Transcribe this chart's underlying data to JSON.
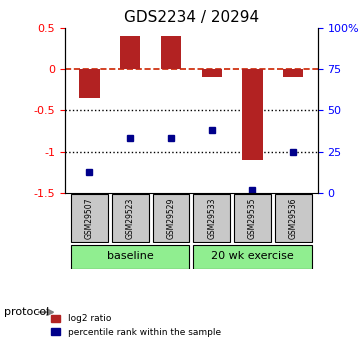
{
  "title": "GDS2234 / 20294",
  "samples": [
    "GSM29507",
    "GSM29523",
    "GSM29529",
    "GSM29533",
    "GSM29535",
    "GSM29536"
  ],
  "log2_ratio": [
    -0.35,
    0.4,
    0.4,
    -0.1,
    -1.1,
    -0.1
  ],
  "percentile_rank": [
    13,
    33,
    33,
    38,
    2,
    25
  ],
  "bar_color": "#b22222",
  "dot_color": "#00008b",
  "ylim_left": [
    -1.5,
    0.5
  ],
  "ylim_right": [
    0,
    100
  ],
  "yticks_left": [
    -1.5,
    -1.0,
    -0.5,
    0.0,
    0.5
  ],
  "ytick_labels_left": [
    "-1.5",
    "-1",
    "-0.5",
    "0",
    "0.5"
  ],
  "yticks_right": [
    0,
    25,
    50,
    75,
    100
  ],
  "ytick_labels_right": [
    "0",
    "25",
    "50",
    "75",
    "100%"
  ],
  "groups": [
    {
      "label": "baseline",
      "indices": [
        0,
        1,
        2
      ],
      "color": "#90ee90"
    },
    {
      "label": "20 wk exercise",
      "indices": [
        3,
        4,
        5
      ],
      "color": "#90ee90"
    }
  ],
  "protocol_label": "protocol",
  "legend": [
    {
      "label": "log2 ratio",
      "color": "#b22222",
      "marker": "s"
    },
    {
      "label": "percentile rank within the sample",
      "color": "#00008b",
      "marker": "s"
    }
  ],
  "bar_width": 0.5,
  "hline_zero_color": "#cc2200",
  "hline_zero_style": "--",
  "dotted_line_color": "#000000",
  "bg_color": "#ffffff",
  "plot_bg": "#ffffff"
}
